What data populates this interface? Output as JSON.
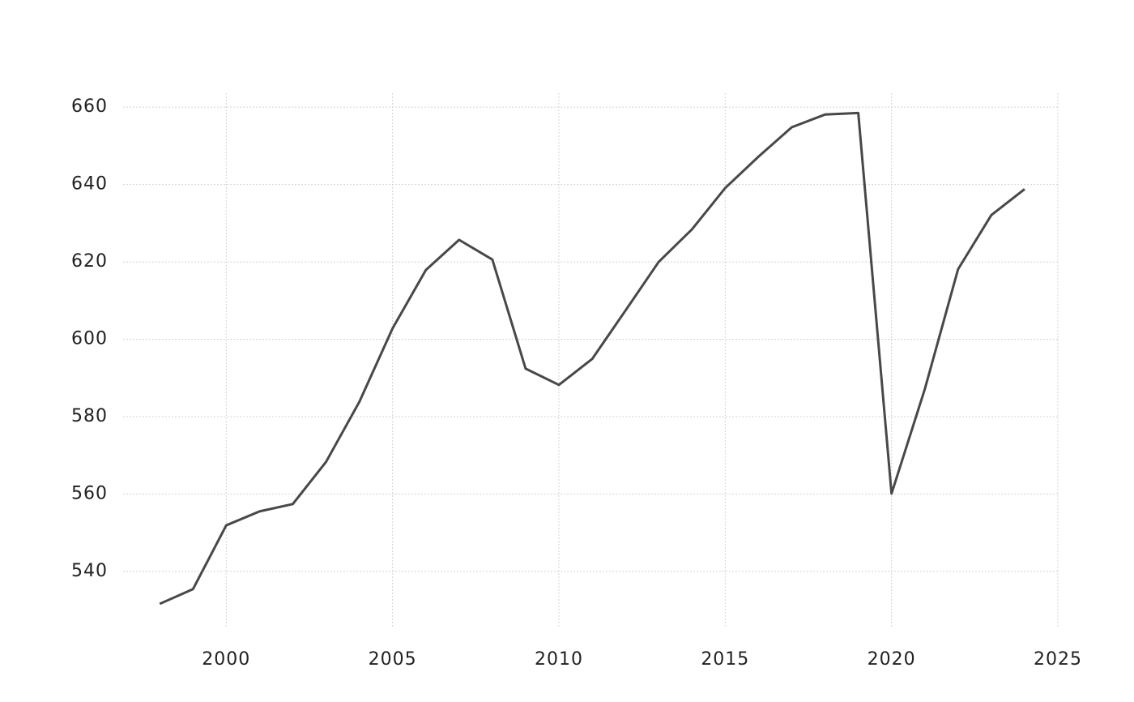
{
  "chart_data": {
    "type": "line",
    "x": [
      1998,
      1999,
      2000,
      2001,
      2002,
      2003,
      2004,
      2005,
      2006,
      2007,
      2008,
      2009,
      2010,
      2011,
      2012,
      2013,
      2014,
      2015,
      2016,
      2017,
      2018,
      2019,
      2020,
      2021,
      2022,
      2023,
      2024
    ],
    "series": [
      {
        "color": "#484848",
        "values": [
          531.6,
          535.4,
          551.9,
          555.5,
          557.4,
          568.3,
          583.8,
          602.8,
          617.9,
          625.7,
          620.6,
          592.4,
          588.2,
          594.9,
          607.4,
          620.0,
          628.4,
          639.1,
          647.2,
          654.8,
          658.1,
          658.5,
          560.1,
          587.1,
          618.1,
          632.1,
          638.8
        ]
      }
    ],
    "xlim": [
      1996.9,
      2025
    ],
    "xticks": [
      2000,
      2005,
      2010,
      2015,
      2020,
      2025
    ],
    "ylim": [
      525.3,
      663.6
    ],
    "yticks": [
      540,
      560,
      580,
      600,
      620,
      640,
      660
    ],
    "grid": true
  }
}
